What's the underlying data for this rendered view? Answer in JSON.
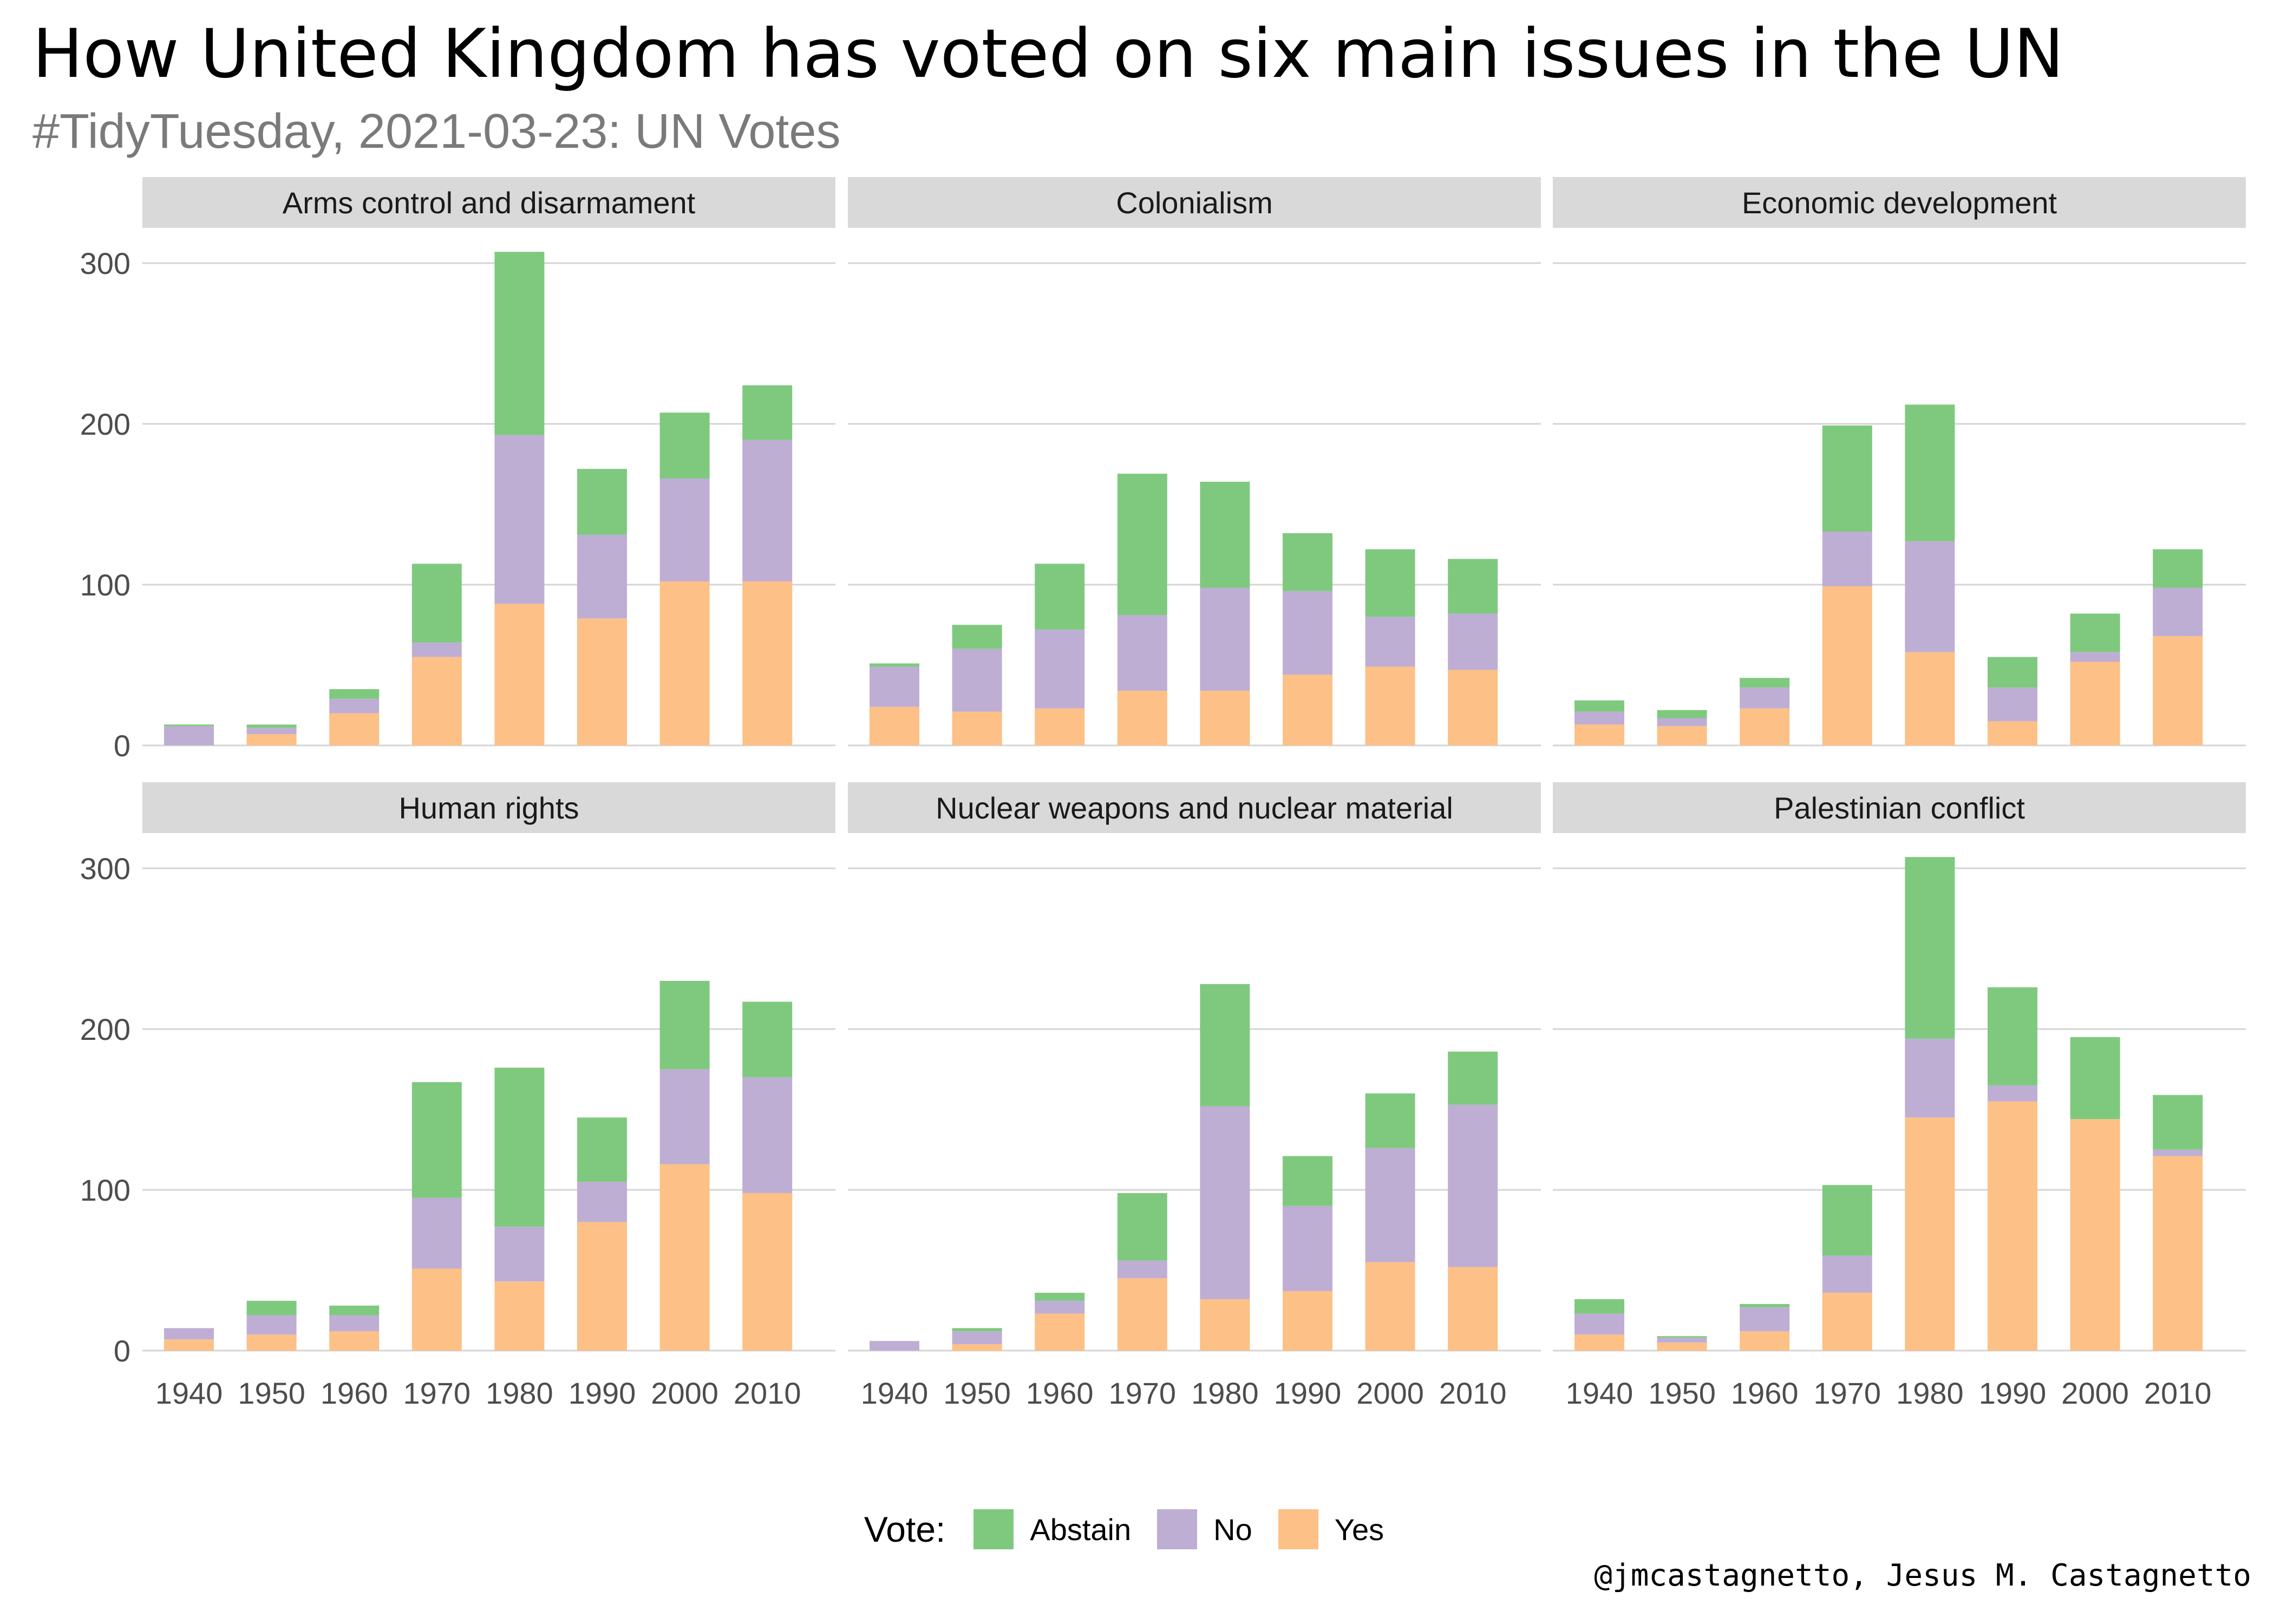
{
  "title": "How United Kingdom has voted on six main issues in the UN",
  "subtitle": "#TidyTuesday, 2021-03-23: UN Votes",
  "caption": "@jmcastagnetto, Jesus M. Castagnetto",
  "legend": {
    "title": "Vote:",
    "items": [
      {
        "label": "Abstain",
        "color": "#7fc97f"
      },
      {
        "label": "No",
        "color": "#beaed4"
      },
      {
        "label": "Yes",
        "color": "#fdc086"
      }
    ]
  },
  "chart_data": {
    "type": "bar",
    "stacked": true,
    "layout": "facet-grid 2x3",
    "x_tick_labels": [
      "1940",
      "1950",
      "1960",
      "1970",
      "1980",
      "1990",
      "2000",
      "2010"
    ],
    "y_ticks": [
      0,
      100,
      200,
      300
    ],
    "ylim": [
      0,
      310
    ],
    "grid": true,
    "legend_position": "bottom",
    "series_order": [
      "Yes",
      "No",
      "Abstain"
    ],
    "facets": [
      {
        "name": "Arms control and disarmament",
        "series": [
          {
            "name": "Yes",
            "values": [
              0,
              7,
              20,
              55,
              88,
              79,
              102,
              102
            ]
          },
          {
            "name": "No",
            "values": [
              12,
              4,
              9,
              9,
              105,
              52,
              64,
              88
            ]
          },
          {
            "name": "Abstain",
            "values": [
              1,
              2,
              6,
              49,
              114,
              41,
              41,
              34
            ]
          }
        ]
      },
      {
        "name": "Colonialism",
        "series": [
          {
            "name": "Yes",
            "values": [
              24,
              21,
              23,
              34,
              34,
              44,
              49,
              47
            ]
          },
          {
            "name": "No",
            "values": [
              25,
              39,
              49,
              47,
              64,
              52,
              31,
              35
            ]
          },
          {
            "name": "Abstain",
            "values": [
              2,
              15,
              41,
              88,
              66,
              36,
              42,
              34
            ]
          }
        ]
      },
      {
        "name": "Economic development",
        "series": [
          {
            "name": "Yes",
            "values": [
              13,
              12,
              23,
              99,
              58,
              15,
              52,
              68
            ]
          },
          {
            "name": "No",
            "values": [
              8,
              5,
              13,
              34,
              69,
              21,
              6,
              30
            ]
          },
          {
            "name": "Abstain",
            "values": [
              7,
              5,
              6,
              66,
              85,
              19,
              24,
              24
            ]
          }
        ]
      },
      {
        "name": "Human rights",
        "series": [
          {
            "name": "Yes",
            "values": [
              7,
              10,
              12,
              51,
              43,
              80,
              116,
              98
            ]
          },
          {
            "name": "No",
            "values": [
              7,
              12,
              10,
              44,
              34,
              25,
              59,
              72
            ]
          },
          {
            "name": "Abstain",
            "values": [
              0,
              9,
              6,
              72,
              99,
              40,
              55,
              47
            ]
          }
        ]
      },
      {
        "name": "Nuclear weapons and nuclear material",
        "series": [
          {
            "name": "Yes",
            "values": [
              0,
              4,
              23,
              45,
              32,
              37,
              55,
              52
            ]
          },
          {
            "name": "No",
            "values": [
              6,
              8,
              8,
              11,
              120,
              53,
              71,
              101
            ]
          },
          {
            "name": "Abstain",
            "values": [
              0,
              2,
              5,
              42,
              76,
              31,
              34,
              33
            ]
          }
        ]
      },
      {
        "name": "Palestinian conflict",
        "series": [
          {
            "name": "Yes",
            "values": [
              10,
              5,
              12,
              36,
              145,
              155,
              144,
              121
            ]
          },
          {
            "name": "No",
            "values": [
              13,
              3,
              15,
              23,
              49,
              10,
              0,
              4
            ]
          },
          {
            "name": "Abstain",
            "values": [
              9,
              1,
              2,
              44,
              113,
              61,
              51,
              34
            ]
          }
        ]
      }
    ]
  }
}
